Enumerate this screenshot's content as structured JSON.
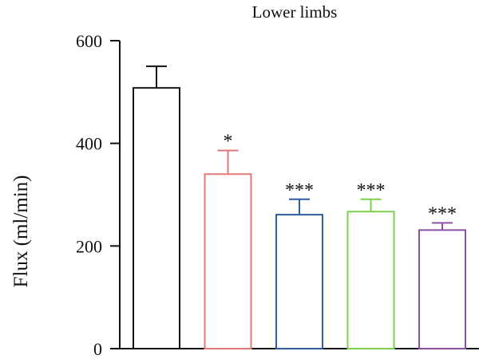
{
  "chart_data": {
    "type": "bar",
    "title": "Lower limbs",
    "ylabel": "Flux (ml/min)",
    "xlabel": "",
    "ylim": [
      0,
      600
    ],
    "yticks": [
      0,
      200,
      400,
      600
    ],
    "grid": false,
    "legend": "none",
    "bars": [
      {
        "value": 508,
        "error": 42,
        "color": "#111111",
        "significance": ""
      },
      {
        "value": 340,
        "error": 46,
        "color": "#e07a7a",
        "significance": "*"
      },
      {
        "value": 261,
        "error": 30,
        "color": "#2e5e9e",
        "significance": "***"
      },
      {
        "value": 267,
        "error": 24,
        "color": "#7fcf4f",
        "significance": "***"
      },
      {
        "value": 231,
        "error": 14,
        "color": "#8e4fa6",
        "significance": "***"
      }
    ]
  }
}
